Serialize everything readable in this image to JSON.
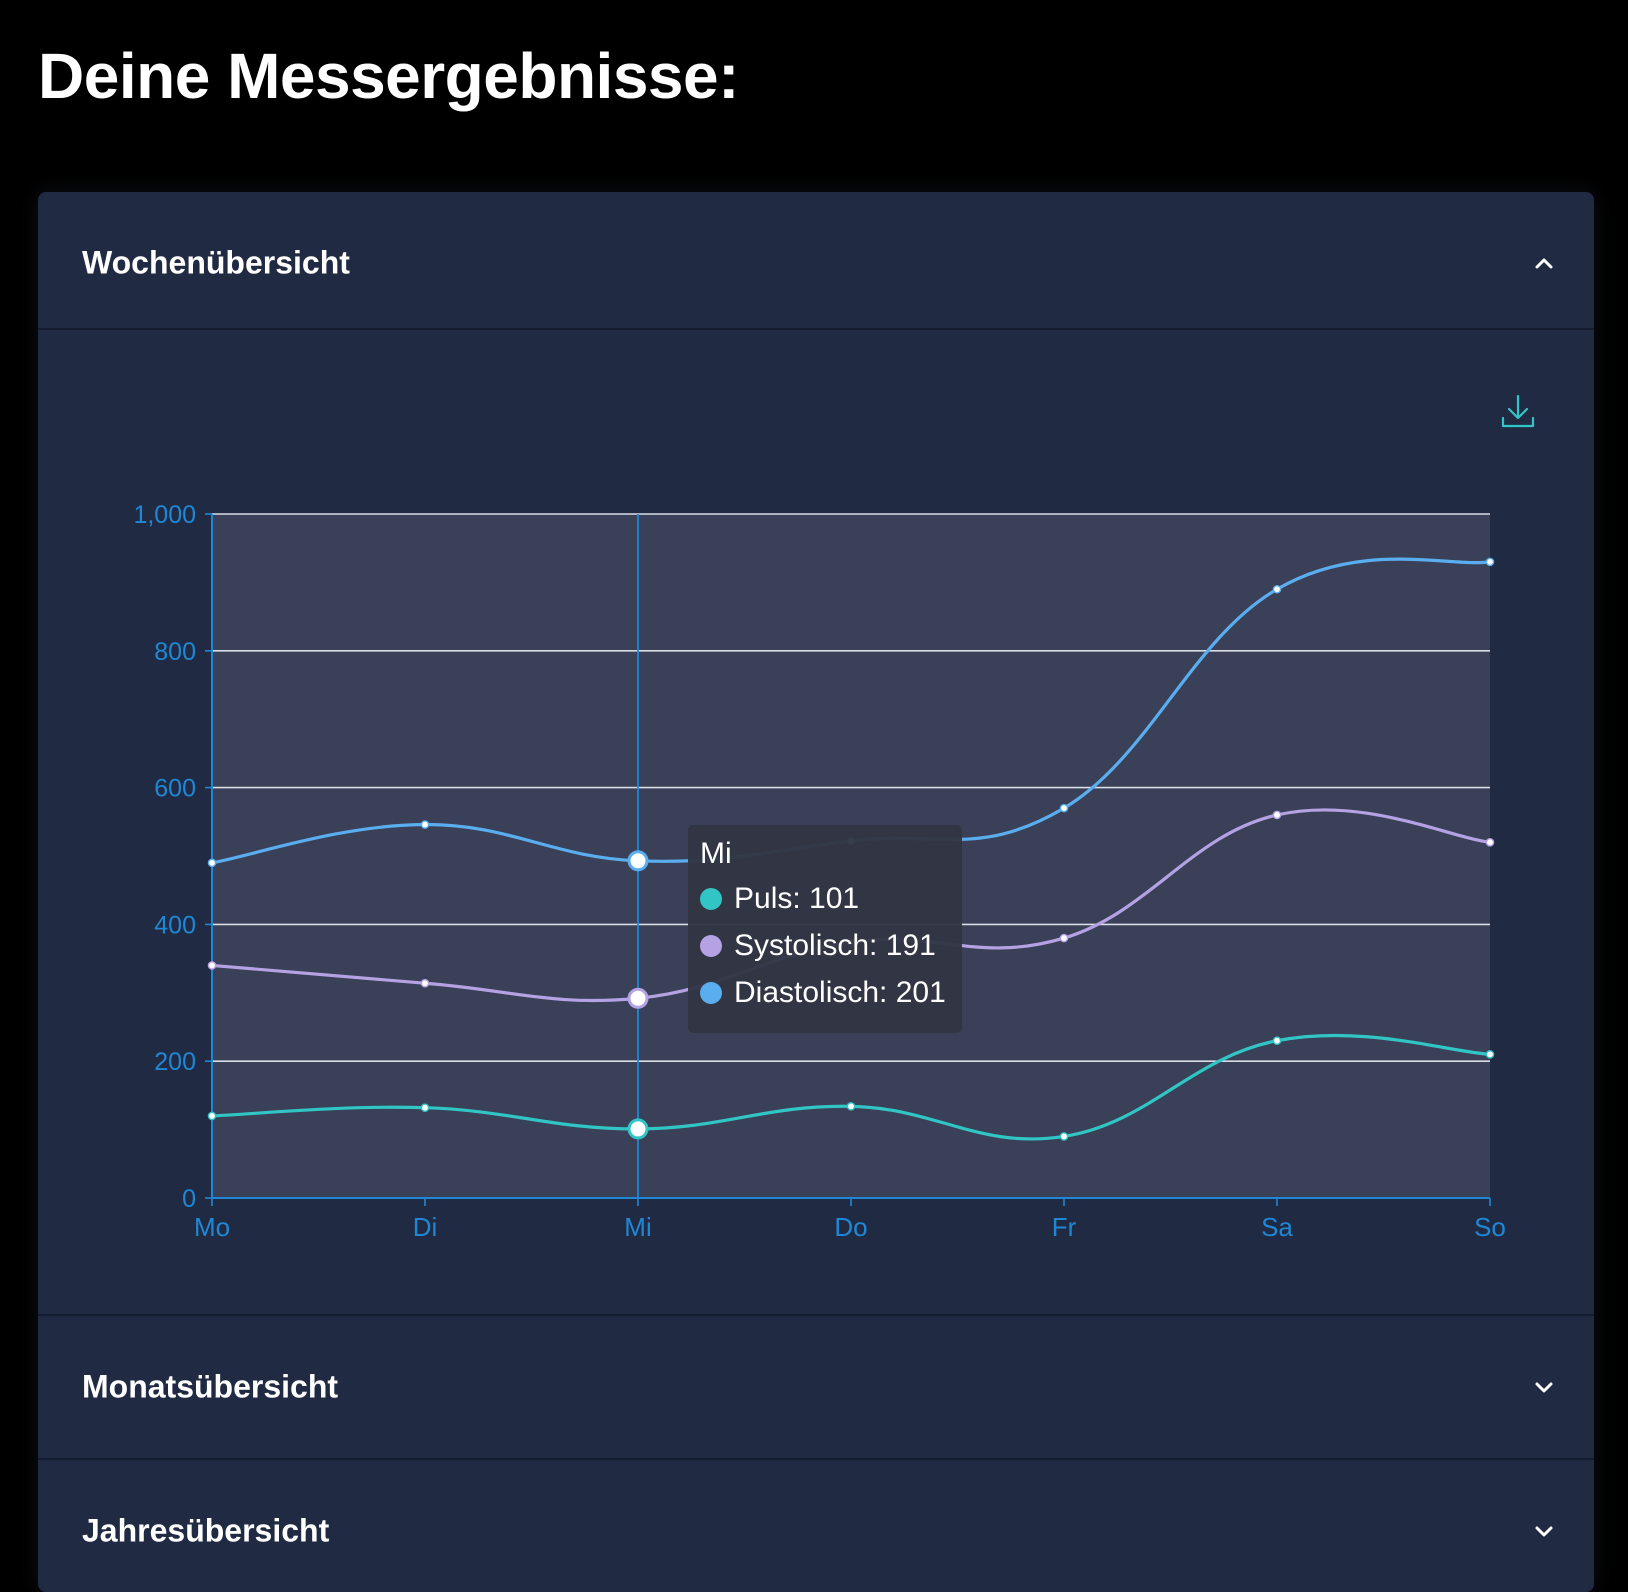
{
  "page": {
    "title": "Deine Messergebnisse:"
  },
  "sections": [
    {
      "title": "Wochenübersicht",
      "expanded": true,
      "chevron": "chevron-up-icon"
    },
    {
      "title": "Monatsübersicht",
      "expanded": false,
      "chevron": "chevron-down-icon"
    },
    {
      "title": "Jahresübersicht",
      "expanded": false,
      "chevron": "chevron-down-icon"
    }
  ],
  "toolbar": {
    "download_icon": "download-icon"
  },
  "colors": {
    "background": "#000000",
    "panel": "#212a43",
    "plot_area": "#394057",
    "axis": "#1e88d6",
    "gridline": "#d9dde6",
    "puls": "#32c5c5",
    "systolisch": "#b5a2e4",
    "diastolisch": "#5aaef0"
  },
  "tooltip": {
    "title": "Mi",
    "rows": [
      {
        "text": "Puls: 101",
        "color": "#32c5c5"
      },
      {
        "text": "Systolisch: 191",
        "color": "#b5a2e4"
      },
      {
        "text": "Diastolisch: 201",
        "color": "#5aaef0"
      }
    ]
  },
  "chart_data": {
    "type": "line",
    "categories": [
      "Mo",
      "Di",
      "Mi",
      "Do",
      "Fr",
      "Sa",
      "So"
    ],
    "ylim": [
      0,
      1000
    ],
    "yticks": [
      0,
      200,
      400,
      600,
      800,
      1000
    ],
    "ytick_labels": [
      "0",
      "200",
      "400",
      "600",
      "800",
      "1,000"
    ],
    "grid": true,
    "stacked": true,
    "highlight_category": "Mi",
    "series": [
      {
        "name": "Puls",
        "color": "#32c5c5",
        "values": [
          120,
          132,
          101,
          134,
          90,
          230,
          210
        ]
      },
      {
        "name": "Systolisch",
        "color": "#b5a2e4",
        "values": [
          220,
          182,
          191,
          240,
          290,
          330,
          310
        ]
      },
      {
        "name": "Diastolisch",
        "color": "#5aaef0",
        "values": [
          150,
          232,
          201,
          148,
          190,
          330,
          410
        ]
      }
    ]
  }
}
